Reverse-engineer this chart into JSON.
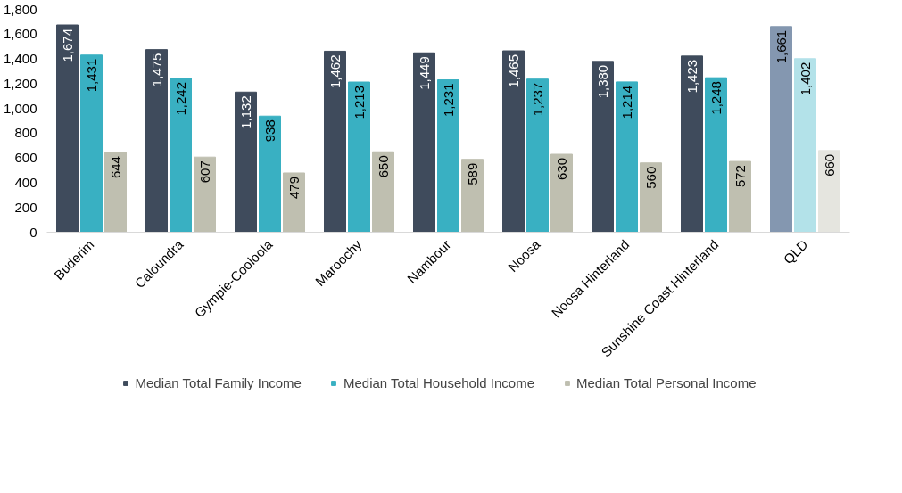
{
  "chart_data": {
    "type": "bar",
    "categories": [
      "Buderim",
      "Caloundra",
      "Gympie-Cooloola",
      "Maroochy",
      "Nambour",
      "Noosa",
      "Noosa Hinterland",
      "Sunshine Coast Hinterland",
      "QLD"
    ],
    "series": [
      {
        "name": "Median Total Family Income",
        "color": "#3f4b5c",
        "colors": [
          "#3f4b5c",
          "#3f4b5c",
          "#3f4b5c",
          "#3f4b5c",
          "#3f4b5c",
          "#3f4b5c",
          "#3f4b5c",
          "#3f4b5c",
          "#8497b0"
        ],
        "values": [
          1674,
          1475,
          1132,
          1462,
          1449,
          1465,
          1380,
          1423,
          1661
        ],
        "value_labels": [
          "1,674",
          "1,475",
          "1,132",
          "1,462",
          "1,449",
          "1,465",
          "1,380",
          "1,423",
          "1,661"
        ]
      },
      {
        "name": "Median Total Household Income",
        "color": "#39b0c2",
        "colors": [
          "#39b0c2",
          "#39b0c2",
          "#39b0c2",
          "#39b0c2",
          "#39b0c2",
          "#39b0c2",
          "#39b0c2",
          "#39b0c2",
          "#b3e2e9"
        ],
        "values": [
          1431,
          1242,
          938,
          1213,
          1231,
          1237,
          1214,
          1248,
          1402
        ],
        "value_labels": [
          "1,431",
          "1,242",
          "938",
          "1,213",
          "1,231",
          "1,237",
          "1,214",
          "1,248",
          "1,402"
        ]
      },
      {
        "name": "Median Total Personal Income",
        "color": "#bfbfb0",
        "colors": [
          "#bfbfb0",
          "#bfbfb0",
          "#bfbfb0",
          "#bfbfb0",
          "#bfbfb0",
          "#bfbfb0",
          "#bfbfb0",
          "#bfbfb0",
          "#e5e5df"
        ],
        "values": [
          644,
          607,
          479,
          650,
          589,
          630,
          560,
          572,
          660
        ],
        "value_labels": [
          "644",
          "607",
          "479",
          "650",
          "589",
          "630",
          "560",
          "572",
          "660"
        ]
      }
    ],
    "ylim": [
      0,
      1800
    ],
    "yticks": [
      0,
      200,
      400,
      600,
      800,
      {
        "value": 1000,
        "label": "1,000"
      },
      {
        "value": 1200,
        "label": "1,200"
      },
      {
        "value": 1400,
        "label": "1,400"
      },
      {
        "value": 1600,
        "label": "1,600"
      },
      {
        "value": 1800,
        "label": "1,800"
      }
    ],
    "grid": false,
    "legend": "bottom"
  }
}
